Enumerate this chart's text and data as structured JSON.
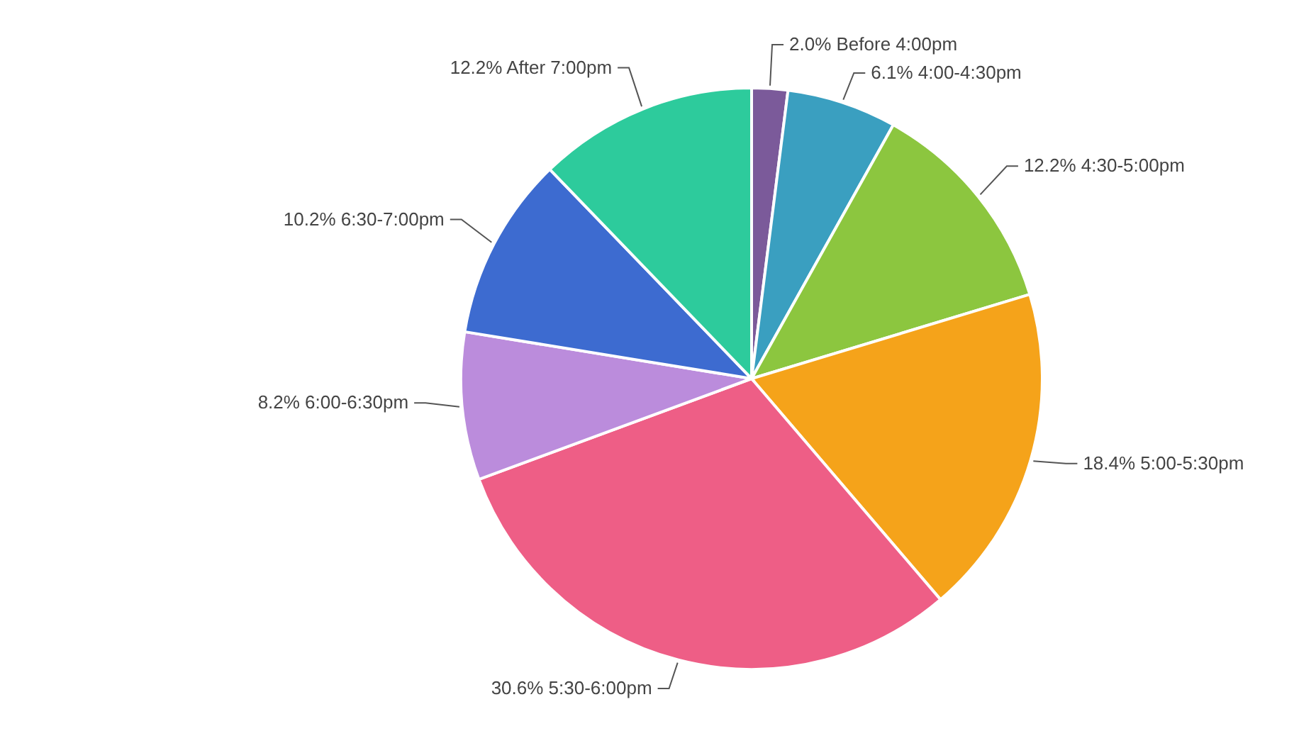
{
  "chart_data": {
    "type": "pie",
    "categories": [
      "Before 4:00pm",
      "4:00-4:30pm",
      "4:30-5:00pm",
      "5:00-5:30pm",
      "5:30-6:00pm",
      "6:00-6:30pm",
      "6:30-7:00pm",
      "After 7:00pm"
    ],
    "values": [
      2.0,
      6.1,
      12.2,
      18.4,
      30.6,
      8.2,
      10.2,
      12.2
    ],
    "value_labels": [
      "2.0%",
      "6.1%",
      "12.2%",
      "18.4%",
      "30.6%",
      "8.2%",
      "10.2%",
      "12.2%"
    ],
    "colors": [
      "#7b5a9a",
      "#3a9fc0",
      "#8cc63f",
      "#f5a31a",
      "#ee5e86",
      "#bb8cdc",
      "#3d6bd0",
      "#2dcb9c"
    ]
  }
}
